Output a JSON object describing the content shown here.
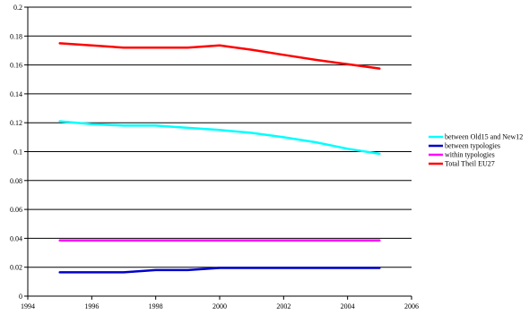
{
  "chart_data": {
    "type": "line",
    "title": "",
    "xlabel": "",
    "ylabel": "",
    "xlim": [
      1994,
      2006
    ],
    "ylim": [
      0,
      0.2
    ],
    "x_ticks": [
      "1994",
      "1996",
      "1998",
      "2000",
      "2002",
      "2004",
      "2006"
    ],
    "y_ticks": [
      "0",
      "0.02",
      "0.04",
      "0.06",
      "0.08",
      "0.1",
      "0.12",
      "0.14",
      "0.16",
      "0.18",
      "0.2"
    ],
    "grid": "horizontal",
    "legend_position": "right",
    "x": [
      1995,
      1996,
      1997,
      1998,
      1999,
      2000,
      2001,
      2002,
      2003,
      2004,
      2005
    ],
    "series": [
      {
        "name": "between Old15 and New12",
        "color": "#00FFFF",
        "values": [
          0.121,
          0.119,
          0.118,
          0.118,
          0.1165,
          0.115,
          0.113,
          0.11,
          0.1065,
          0.102,
          0.0985
        ]
      },
      {
        "name": "between typologies",
        "color": "#0000CC",
        "values": [
          0.0165,
          0.0165,
          0.0165,
          0.018,
          0.018,
          0.0195,
          0.0195,
          0.0195,
          0.0195,
          0.0195,
          0.0195
        ]
      },
      {
        "name": "within typologies",
        "color": "#FF00FF",
        "values": [
          0.0385,
          0.0385,
          0.0385,
          0.0385,
          0.0385,
          0.0385,
          0.0385,
          0.0385,
          0.0385,
          0.0385,
          0.0385
        ]
      },
      {
        "name": "Total Theil EU27",
        "color": "#FF0000",
        "values": [
          0.175,
          0.1735,
          0.172,
          0.172,
          0.172,
          0.1735,
          0.1705,
          0.167,
          0.1635,
          0.1605,
          0.1575
        ]
      }
    ]
  }
}
